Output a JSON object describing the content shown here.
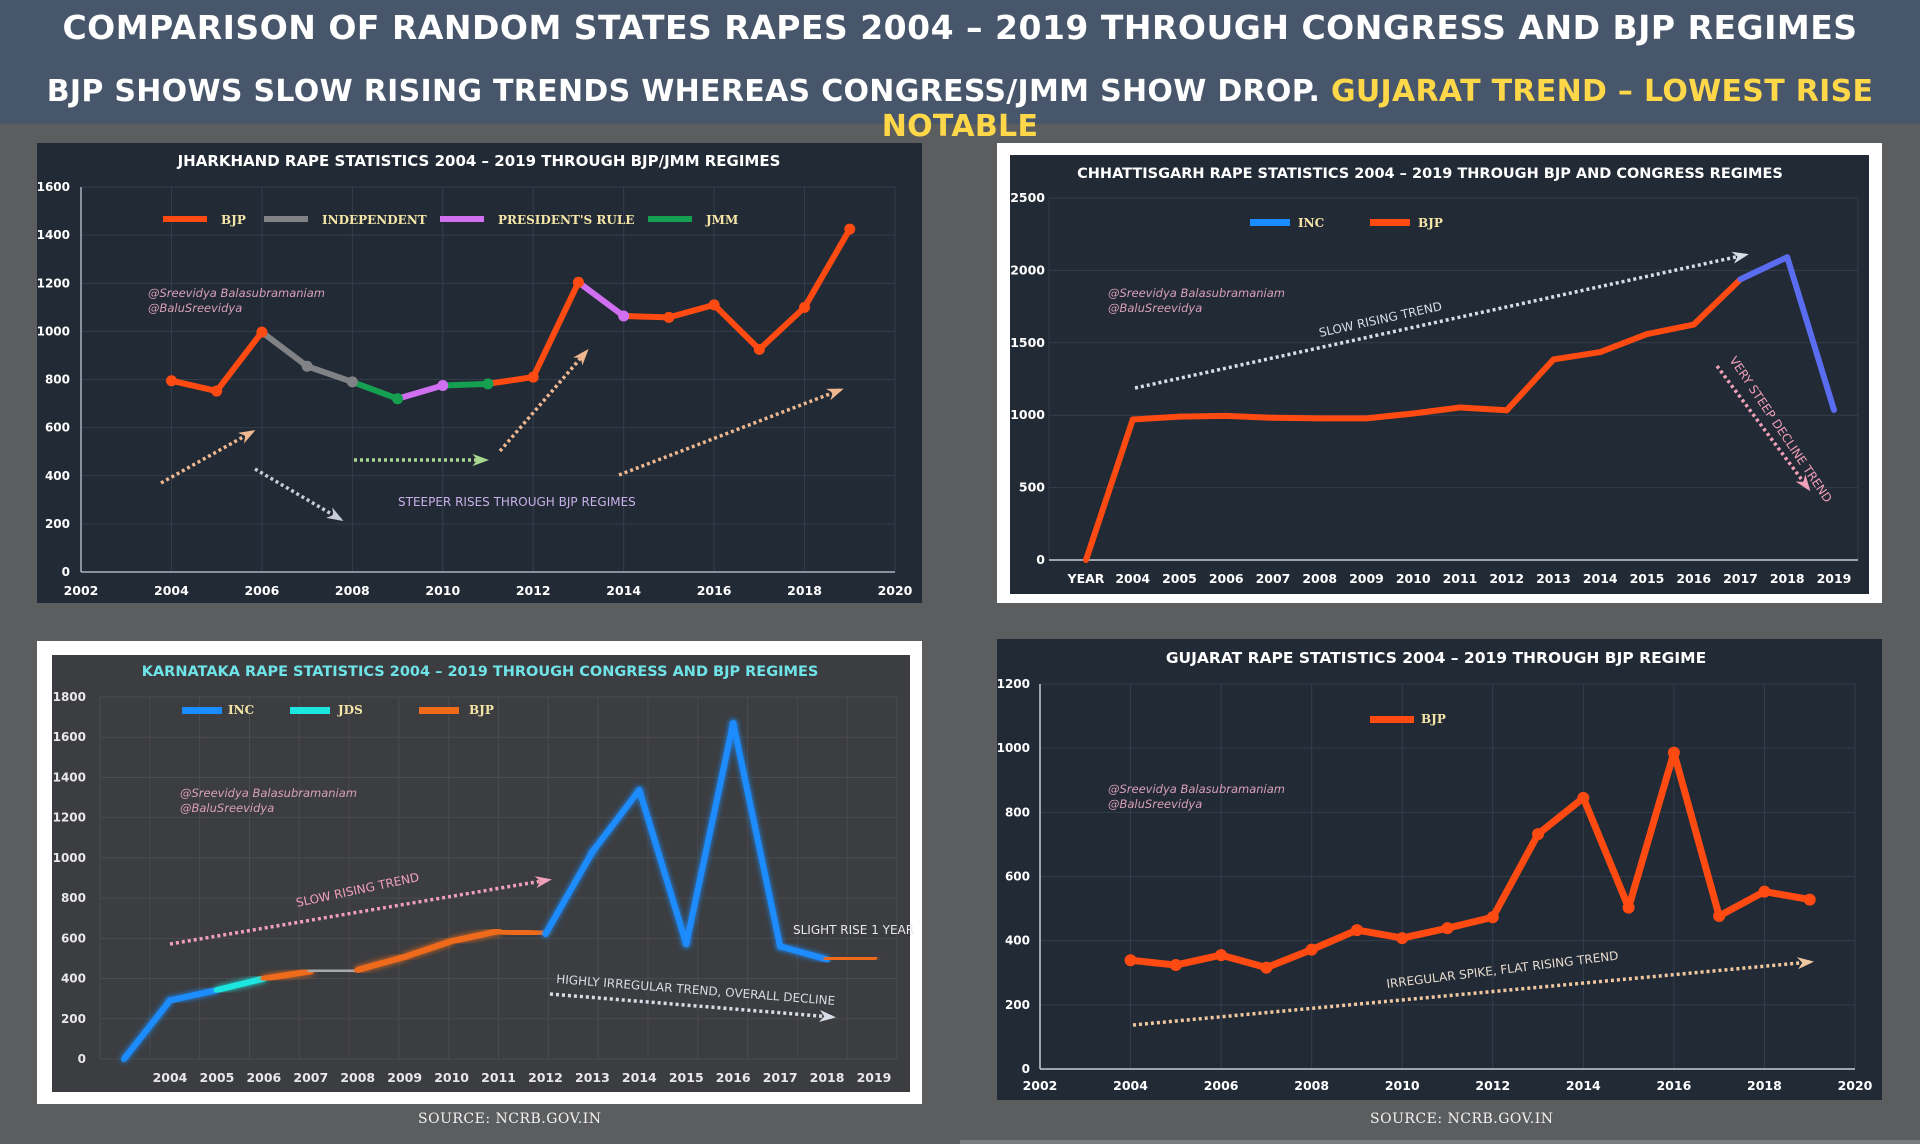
{
  "header": {
    "title": "COMPARISON OF RANDOM STATES RAPES 2004 – 2019  THROUGH CONGRESS AND BJP REGIMES",
    "subtitle_main": "BJP SHOWS SLOW RISING TRENDS WHEREAS CONGRESS/JMM SHOW DROP. ",
    "subtitle_highlight": "GUJARAT TREND – LOWEST RISE NOTABLE",
    "highlight_color": "#ffd84a"
  },
  "sources": [
    "SOURCE: NCRB.GOV.IN",
    "SOURCE: NCRB.GOV.IN"
  ],
  "watermark": [
    "@Sreevidya Balasubramaniam",
    "@BaluSreevidya"
  ],
  "chart_data": [
    {
      "id": "jharkhand",
      "type": "line",
      "title": "JHARKHAND RAPE STATISTICS 2004 – 2019 THROUGH BJP/JMM REGIMES",
      "xlabel": "",
      "ylabel": "",
      "xlim": [
        2002,
        2020
      ],
      "ylim": [
        0,
        1600
      ],
      "xticks": [
        "2002",
        "2004",
        "2006",
        "2008",
        "2010",
        "2012",
        "2014",
        "2016",
        "2018",
        "2020"
      ],
      "yticks": [
        "0",
        "200",
        "400",
        "600",
        "800",
        "1000",
        "1200",
        "1400",
        "1600"
      ],
      "grid": true,
      "x": [
        2004,
        2005,
        2006,
        2007,
        2008,
        2009,
        2010,
        2011,
        2012,
        2013,
        2014,
        2015,
        2016,
        2017,
        2018,
        2019
      ],
      "values": [
        795,
        752,
        997,
        855,
        790,
        720,
        775,
        782,
        810,
        1204,
        1064,
        1058,
        1110,
        925,
        1100,
        1425
      ],
      "segment_regimes": [
        "BJP",
        "BJP",
        "Independent",
        "Independent",
        "JMM",
        "President's Rule",
        "JMM",
        "BJP",
        "BJP",
        "President's Rule",
        "BJP",
        "BJP",
        "BJP",
        "BJP",
        "BJP"
      ],
      "legend": [
        {
          "name": "BJP",
          "color": "#ff4a12"
        },
        {
          "name": "INDEPENDENT",
          "color": "#808285"
        },
        {
          "name": "PRESIDENT'S RULE",
          "color": "#d070f0"
        },
        {
          "name": "JMM",
          "color": "#14a050"
        }
      ],
      "legend_position": "top",
      "annotations": [
        {
          "text": "STEEPER RISES THROUGH BJP REGIMES",
          "color": "#c8b0e8"
        }
      ]
    },
    {
      "id": "chhattisgarh",
      "type": "line",
      "title": "CHHATTISGARH RAPE STATISTICS 2004 – 2019  THROUGH BJP AND CONGRESS REGIMES",
      "xlabel": "",
      "ylabel": "",
      "ylim": [
        0,
        2500
      ],
      "categories": [
        "YEAR",
        "2004",
        "2005",
        "2006",
        "2007",
        "2008",
        "2009",
        "2010",
        "2011",
        "2012",
        "2013",
        "2014",
        "2015",
        "2016",
        "2017",
        "2018",
        "2019"
      ],
      "yticks": [
        "0",
        "500",
        "1000",
        "1500",
        "2000",
        "2500"
      ],
      "grid": true,
      "values": [
        0,
        970,
        990,
        995,
        982,
        978,
        978,
        1012,
        1053,
        1034,
        1385,
        1436,
        1560,
        1626,
        1939,
        2091,
        1036
      ],
      "segment_regimes": [
        "BJP",
        "BJP",
        "BJP",
        "BJP",
        "BJP",
        "BJP",
        "BJP",
        "BJP",
        "BJP",
        "BJP",
        "BJP",
        "BJP",
        "BJP",
        "BJP",
        "INC",
        "INC"
      ],
      "legend": [
        {
          "name": "INC",
          "color": "#1a8cff"
        },
        {
          "name": "BJP",
          "color": "#ff4a12"
        }
      ],
      "line_colors": {
        "BJP": "#ff4a12",
        "INC": "#5a6cf0"
      },
      "legend_position": "top-left",
      "annotations": [
        {
          "text": "SLOW RISING TREND",
          "color": "#d8dde6"
        },
        {
          "text": "VERY STEEP DECLINE TREND",
          "color": "#f0a0b8"
        }
      ]
    },
    {
      "id": "karnataka",
      "type": "line",
      "title": "KARNATAKA RAPE STATISTICS 2004 – 2019 THROUGH CONGRESS AND BJP REGIMES",
      "xlabel": "",
      "ylabel": "",
      "ylim": [
        0,
        1800
      ],
      "categories": [
        "",
        "2004",
        "2005",
        "2006",
        "2007",
        "2008",
        "2009",
        "2010",
        "2011",
        "2012",
        "2013",
        "2014",
        "2015",
        "2016",
        "2017",
        "2018",
        "2019"
      ],
      "yticks": [
        "0",
        "200",
        "400",
        "600",
        "800",
        "1000",
        "1200",
        "1400",
        "1600",
        "1800"
      ],
      "grid": true,
      "values": [
        0,
        291,
        343,
        400,
        436,
        443,
        508,
        586,
        636,
        621,
        1030,
        1337,
        572,
        1670,
        560,
        495,
        505
      ],
      "segment_regimes": [
        "INC",
        "INC",
        "JDS",
        "BJP",
        "Other",
        "BJP",
        "BJP",
        "BJP",
        "BJP",
        "INC",
        "INC",
        "INC",
        "INC",
        "INC",
        "INC",
        "BJP"
      ],
      "legend": [
        {
          "name": "INC",
          "color": "#1a8cff"
        },
        {
          "name": "JDS",
          "color": "#1de6e0"
        },
        {
          "name": "BJP",
          "color": "#f06a1a"
        }
      ],
      "line_colors": {
        "INC": "#1a8cff",
        "JDS": "#1de6e0",
        "BJP": "#f06a1a",
        "Other": "#a8a9ad"
      },
      "legend_position": "top-left",
      "annotations": [
        {
          "text": "SLOW RISING TREND",
          "color": "#f0a0b8"
        },
        {
          "text": "HIGHLY IRREGULAR TREND, OVERALL DECLINE",
          "color": "#d8dde6"
        },
        {
          "text": "SLIGHT RISE 1 YEAR",
          "color": "#e8e8e8"
        }
      ]
    },
    {
      "id": "gujarat",
      "type": "line",
      "title": "GUJARAT RAPE STATISTICS 2004 – 2019 THROUGH BJP REGIME",
      "xlabel": "",
      "ylabel": "",
      "xlim": [
        2002,
        2020
      ],
      "ylim": [
        0,
        1200
      ],
      "xticks": [
        "2002",
        "2004",
        "2006",
        "2008",
        "2010",
        "2012",
        "2014",
        "2016",
        "2018",
        "2020"
      ],
      "yticks": [
        "0",
        "200",
        "400",
        "600",
        "800",
        "1000",
        "1200"
      ],
      "grid": true,
      "x": [
        2004,
        2005,
        2006,
        2007,
        2008,
        2009,
        2010,
        2011,
        2012,
        2013,
        2014,
        2015,
        2016,
        2017,
        2018,
        2019
      ],
      "values": [
        339,
        324,
        355,
        316,
        372,
        433,
        408,
        439,
        473,
        732,
        845,
        503,
        986,
        477,
        553,
        528
      ],
      "legend": [
        {
          "name": "BJP",
          "color": "#ff4a12"
        }
      ],
      "legend_position": "top",
      "annotations": [
        {
          "text": "IRREGULAR SPIKE, FLAT RISING TREND",
          "color": "#e8dccf"
        }
      ]
    }
  ]
}
